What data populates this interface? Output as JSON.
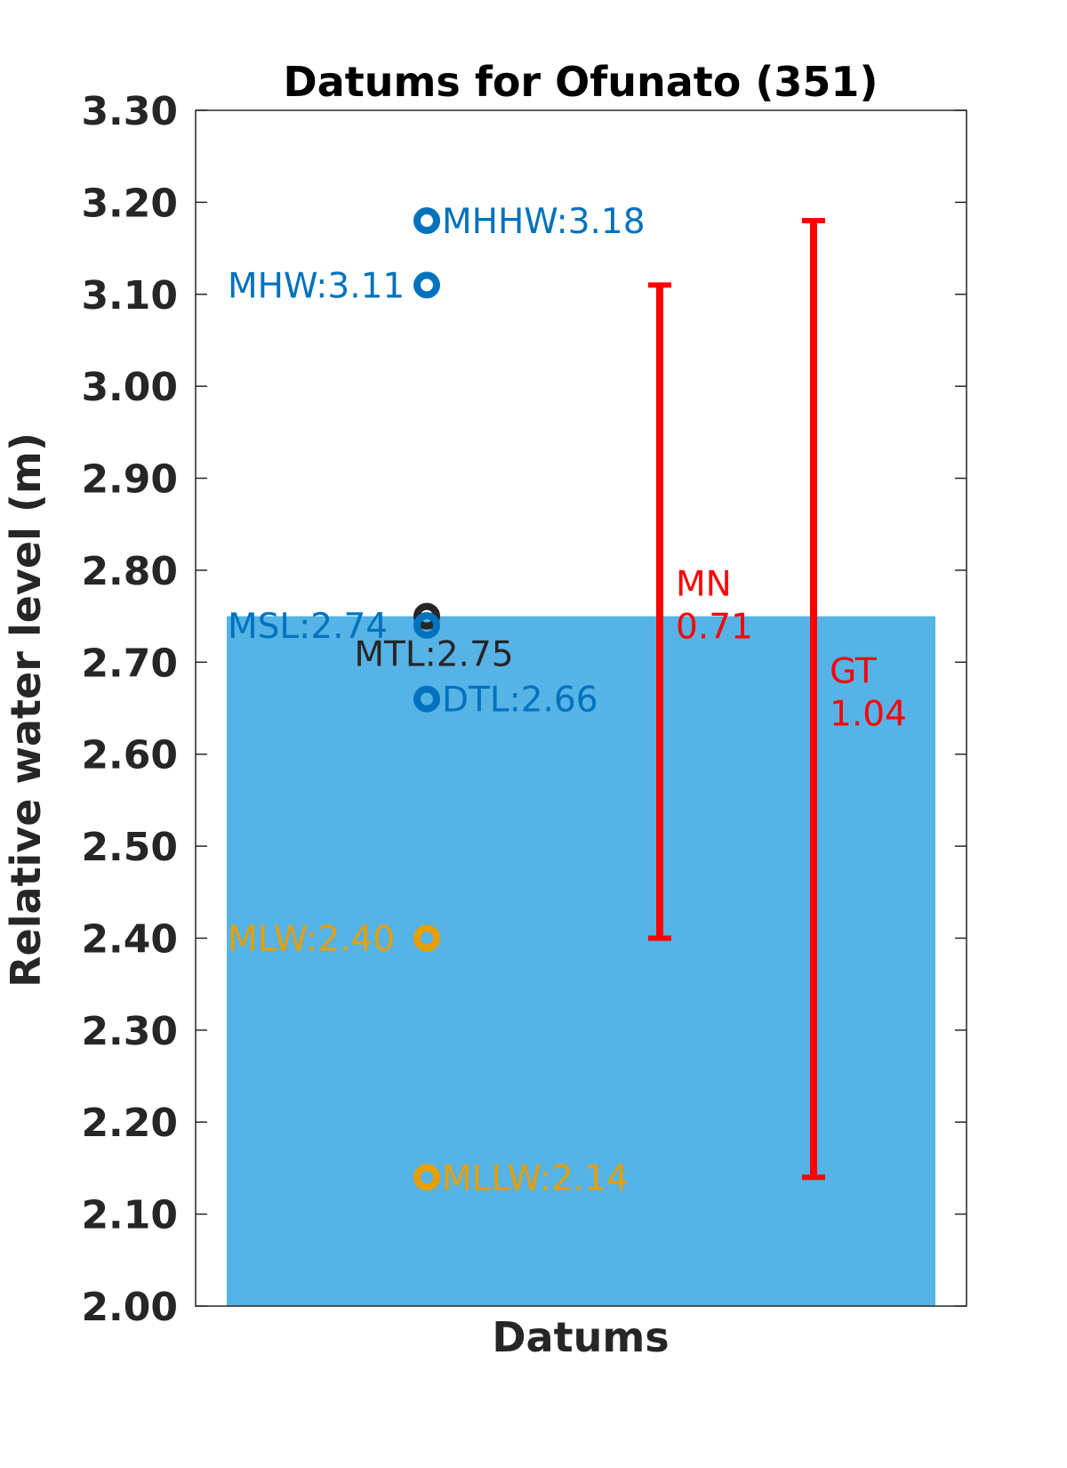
{
  "chart_data": {
    "type": "bar",
    "title": "Datums for Ofunato (351)",
    "xlabel": "Datums",
    "ylabel": "Relative water level (m)",
    "ylim": [
      2.0,
      3.3
    ],
    "yticks": [
      "2.00",
      "2.10",
      "2.20",
      "2.30",
      "2.40",
      "2.50",
      "2.60",
      "2.70",
      "2.80",
      "2.90",
      "3.00",
      "3.10",
      "3.20",
      "3.30"
    ],
    "grid": false,
    "bar": {
      "value": 2.75,
      "color": "#56b3e6"
    },
    "datums": [
      {
        "name": "MHHW",
        "label": "MHHW:3.18",
        "value": 3.18,
        "color": "#0072bd",
        "label_side": "right"
      },
      {
        "name": "MHW",
        "label": "MHW:3.11",
        "value": 3.11,
        "color": "#0072bd",
        "label_side": "left"
      },
      {
        "name": "MTL",
        "label": "MTL:2.75",
        "value": 2.75,
        "color": "#262626",
        "label_side": "below"
      },
      {
        "name": "MSL",
        "label": "MSL:2.74",
        "value": 2.74,
        "color": "#0072bd",
        "label_side": "left"
      },
      {
        "name": "DTL",
        "label": "DTL:2.66",
        "value": 2.66,
        "color": "#0072bd",
        "label_side": "right"
      },
      {
        "name": "MLW",
        "label": "MLW:2.40",
        "value": 2.4,
        "color": "#e69f00",
        "label_side": "left"
      },
      {
        "name": "MLLW",
        "label": "MLLW:2.14",
        "value": 2.14,
        "color": "#e69f00",
        "label_side": "right"
      }
    ],
    "ranges": [
      {
        "name": "MN",
        "label_lines": [
          "MN",
          "0.71"
        ],
        "low": 2.4,
        "high": 3.11,
        "color": "#ff0000"
      },
      {
        "name": "GT",
        "label_lines": [
          "GT",
          "1.04"
        ],
        "low": 2.14,
        "high": 3.18,
        "color": "#ff0000"
      }
    ]
  }
}
